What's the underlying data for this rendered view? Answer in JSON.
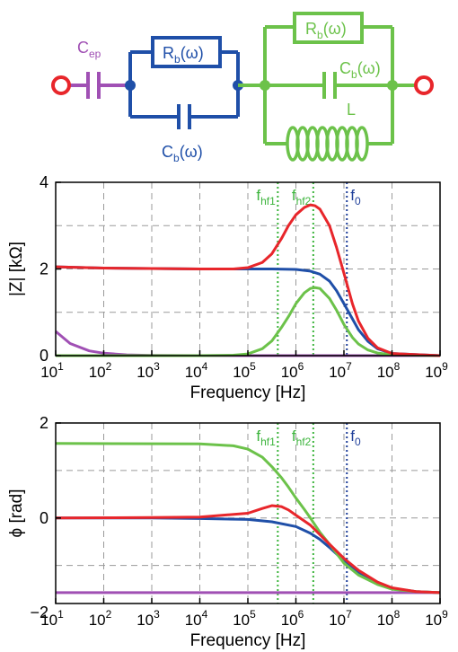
{
  "circuit": {
    "cep_label": "C",
    "cep_sub": "ep",
    "blue_r_label": "R",
    "blue_r_sub": "b",
    "blue_r_arg": "(ω)",
    "blue_c_label": "C",
    "blue_c_sub": "b",
    "blue_c_arg": "(ω)",
    "green_r_label": "R",
    "green_r_sub": "b",
    "green_r_arg": "(ω)",
    "green_c_label": "C",
    "green_c_sub": "b",
    "green_c_arg": "(ω)",
    "inductor_label": "L",
    "colors": {
      "purple": "#a050b4",
      "blue": "#1f4fa8",
      "green": "#6cc24a",
      "red": "#e8262b"
    }
  },
  "chart_data": [
    {
      "type": "line",
      "xscale": "log",
      "xlim": [
        10,
        1000000000
      ],
      "ylim": [
        0,
        4
      ],
      "xlabel": "Frequency [Hz]",
      "ylabel": "|Z| [kΩ]",
      "ytick_labels": [
        "0",
        "2",
        "4"
      ],
      "yticks": [
        0,
        2,
        4
      ],
      "xtick_base": "10",
      "xtick_exponents": [
        "1",
        "2",
        "3",
        "4",
        "5",
        "6",
        "7",
        "8",
        "9"
      ],
      "grid": true,
      "markers": [
        {
          "label": "f",
          "sub": "hf1",
          "x": 420000,
          "color": "#3cb43c"
        },
        {
          "label": "f",
          "sub": "hf2",
          "x": 2300000,
          "color": "#3cb43c"
        },
        {
          "label": "f",
          "sub": "0",
          "x": 11500000,
          "color": "#1f3f9a"
        }
      ],
      "series": [
        {
          "color": "#a050b4",
          "points": [
            [
              10,
              0.56
            ],
            [
              20,
              0.28
            ],
            [
              50,
              0.11
            ],
            [
              100,
              0.056
            ],
            [
              300,
              0.019
            ],
            [
              1000,
              0.006
            ],
            [
              10000,
              0.001
            ],
            [
              1000000000,
              0
            ]
          ]
        },
        {
          "color": "#1f4fa8",
          "points": [
            [
              10,
              2.05
            ],
            [
              100,
              2.02
            ],
            [
              1000,
              2.01
            ],
            [
              10000,
              2.0
            ],
            [
              100000,
              2.0
            ],
            [
              316000,
              2.0
            ],
            [
              1000000,
              1.99
            ],
            [
              2000000,
              1.95
            ],
            [
              3160000,
              1.88
            ],
            [
              5000000,
              1.72
            ],
            [
              7000000,
              1.5
            ],
            [
              10000000,
              1.2
            ],
            [
              15000000,
              0.85
            ],
            [
              20000000,
              0.6
            ],
            [
              31600000,
              0.33
            ],
            [
              50000000,
              0.16
            ],
            [
              100000000,
              0.05
            ],
            [
              1000000000,
              0.001
            ]
          ]
        },
        {
          "color": "#6cc24a",
          "points": [
            [
              10,
              0
            ],
            [
              10000,
              0
            ],
            [
              50000,
              0.01
            ],
            [
              100000,
              0.04
            ],
            [
              200000,
              0.16
            ],
            [
              316000,
              0.34
            ],
            [
              500000,
              0.65
            ],
            [
              700000,
              0.9
            ],
            [
              1000000,
              1.2
            ],
            [
              1500000,
              1.45
            ],
            [
              2000000,
              1.55
            ],
            [
              2500000,
              1.57
            ],
            [
              3160000,
              1.55
            ],
            [
              5000000,
              1.32
            ],
            [
              7000000,
              1.05
            ],
            [
              10000000,
              0.72
            ],
            [
              15000000,
              0.42
            ],
            [
              20000000,
              0.27
            ],
            [
              31600000,
              0.13
            ],
            [
              50000000,
              0.06
            ],
            [
              100000000,
              0.02
            ],
            [
              1000000000,
              0
            ]
          ]
        },
        {
          "color": "#e8262b",
          "points": [
            [
              10,
              2.05
            ],
            [
              100,
              2.02
            ],
            [
              1000,
              2.01
            ],
            [
              10000,
              2.0
            ],
            [
              50000,
              2.0
            ],
            [
              100000,
              2.03
            ],
            [
              200000,
              2.15
            ],
            [
              316000,
              2.35
            ],
            [
              500000,
              2.7
            ],
            [
              700000,
              3.0
            ],
            [
              1000000,
              3.25
            ],
            [
              1500000,
              3.42
            ],
            [
              2000000,
              3.48
            ],
            [
              2500000,
              3.46
            ],
            [
              3160000,
              3.38
            ],
            [
              5000000,
              3.0
            ],
            [
              7000000,
              2.5
            ],
            [
              10000000,
              1.9
            ],
            [
              15000000,
              1.2
            ],
            [
              20000000,
              0.8
            ],
            [
              31600000,
              0.4
            ],
            [
              50000000,
              0.18
            ],
            [
              100000000,
              0.05
            ],
            [
              1000000000,
              0.001
            ]
          ]
        }
      ]
    },
    {
      "type": "line",
      "xscale": "log",
      "xlim": [
        10,
        1000000000
      ],
      "ylim": [
        -1.8,
        2
      ],
      "xlabel": "Frequency [Hz]",
      "ylabel": "ϕ [rad]",
      "ytick_labels": [
        "−2",
        "0",
        "2"
      ],
      "yticks": [
        -2,
        0,
        2
      ],
      "xtick_base": "10",
      "xtick_exponents": [
        "1",
        "2",
        "3",
        "4",
        "5",
        "6",
        "7",
        "8",
        "9"
      ],
      "grid": true,
      "markers": [
        {
          "label": "f",
          "sub": "hf1",
          "x": 420000,
          "color": "#3cb43c"
        },
        {
          "label": "f",
          "sub": "hf2",
          "x": 2300000,
          "color": "#3cb43c"
        },
        {
          "label": "f",
          "sub": "0",
          "x": 11500000,
          "color": "#1f3f9a"
        }
      ],
      "series": [
        {
          "color": "#a050b4",
          "points": [
            [
              10,
              -1.5708
            ],
            [
              1000000000,
              -1.5708
            ]
          ]
        },
        {
          "color": "#1f4fa8",
          "points": [
            [
              10,
              0.0
            ],
            [
              1000,
              0.0
            ],
            [
              10000,
              -0.01
            ],
            [
              100000,
              -0.03
            ],
            [
              316000,
              -0.08
            ],
            [
              1000000,
              -0.18
            ],
            [
              2000000,
              -0.32
            ],
            [
              3160000,
              -0.45
            ],
            [
              5000000,
              -0.62
            ],
            [
              10000000,
              -0.9
            ],
            [
              20000000,
              -1.15
            ],
            [
              50000000,
              -1.38
            ],
            [
              100000000,
              -1.48
            ],
            [
              316000000,
              -1.55
            ],
            [
              1000000000,
              -1.57
            ]
          ]
        },
        {
          "color": "#6cc24a",
          "points": [
            [
              10,
              1.57
            ],
            [
              10000,
              1.56
            ],
            [
              50000,
              1.52
            ],
            [
              100000,
              1.45
            ],
            [
              200000,
              1.28
            ],
            [
              316000,
              1.08
            ],
            [
              500000,
              0.85
            ],
            [
              700000,
              0.65
            ],
            [
              1000000,
              0.42
            ],
            [
              1500000,
              0.18
            ],
            [
              2000000,
              0.0
            ],
            [
              3160000,
              -0.3
            ],
            [
              5000000,
              -0.55
            ],
            [
              10000000,
              -0.95
            ],
            [
              20000000,
              -1.2
            ],
            [
              50000000,
              -1.4
            ],
            [
              100000000,
              -1.5
            ],
            [
              316000000,
              -1.55
            ],
            [
              1000000000,
              -1.57
            ]
          ]
        },
        {
          "color": "#e8262b",
          "points": [
            [
              10,
              0.0
            ],
            [
              1000,
              0.01
            ],
            [
              10000,
              0.02
            ],
            [
              100000,
              0.1
            ],
            [
              200000,
              0.2
            ],
            [
              316000,
              0.26
            ],
            [
              500000,
              0.24
            ],
            [
              700000,
              0.17
            ],
            [
              1000000,
              0.06
            ],
            [
              2000000,
              -0.15
            ],
            [
              3160000,
              -0.35
            ],
            [
              5000000,
              -0.55
            ],
            [
              10000000,
              -0.85
            ],
            [
              20000000,
              -1.1
            ],
            [
              50000000,
              -1.35
            ],
            [
              100000000,
              -1.47
            ],
            [
              316000000,
              -1.55
            ],
            [
              1000000000,
              -1.57
            ]
          ]
        }
      ]
    }
  ]
}
